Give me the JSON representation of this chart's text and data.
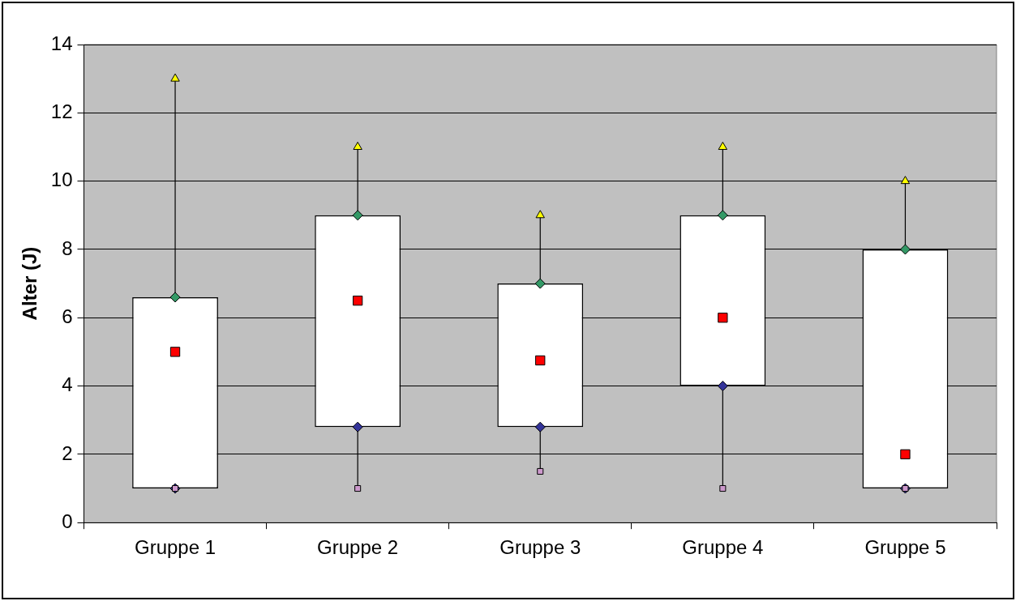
{
  "chart_data": {
    "type": "box",
    "ylabel": "Alter (J)",
    "categories": [
      "Gruppe 1",
      "Gruppe 2",
      "Gruppe 3",
      "Gruppe 4",
      "Gruppe 5"
    ],
    "boxes": [
      {
        "low": 1,
        "q1": 1,
        "median": 5,
        "q3": 6.6,
        "high": 13
      },
      {
        "low": 1,
        "q1": 2.8,
        "median": 6.5,
        "q3": 9,
        "high": 11
      },
      {
        "low": 1.5,
        "q1": 2.8,
        "median": 4.75,
        "q3": 7,
        "high": 9
      },
      {
        "low": 1,
        "q1": 4,
        "median": 6,
        "q3": 9,
        "high": 11
      },
      {
        "low": 1,
        "q1": 1,
        "median": 2,
        "q3": 8,
        "high": 10
      }
    ],
    "series": [
      {
        "type": "scatter",
        "marker": "triangle",
        "color": "#ffff00",
        "x": [
          "Gruppe 1",
          "Gruppe 2",
          "Gruppe 3",
          "Gruppe 4",
          "Gruppe 5"
        ],
        "values": [
          13,
          11,
          9,
          11,
          10
        ]
      },
      {
        "type": "scatter",
        "marker": "diamond",
        "color": "#339966",
        "x": [
          "Gruppe 1",
          "Gruppe 2",
          "Gruppe 3",
          "Gruppe 4",
          "Gruppe 5"
        ],
        "values": [
          6.6,
          9,
          7,
          9,
          8
        ]
      },
      {
        "type": "scatter",
        "marker": "diamond",
        "color": "#333399",
        "x": [
          "Gruppe 1",
          "Gruppe 2",
          "Gruppe 3",
          "Gruppe 4",
          "Gruppe 5"
        ],
        "values": [
          1,
          2.8,
          2.8,
          4,
          1
        ]
      },
      {
        "type": "scatter",
        "marker": "square",
        "color": "#cc99cc",
        "x": [
          "Gruppe 1",
          "Gruppe 2",
          "Gruppe 3",
          "Gruppe 4",
          "Gruppe 5"
        ],
        "values": [
          1,
          1,
          1.5,
          1,
          1
        ]
      }
    ],
    "ylim": [
      0,
      14
    ],
    "yticks": [
      0,
      2,
      4,
      6,
      8,
      10,
      12,
      14
    ],
    "grid": "y",
    "legend": false
  }
}
